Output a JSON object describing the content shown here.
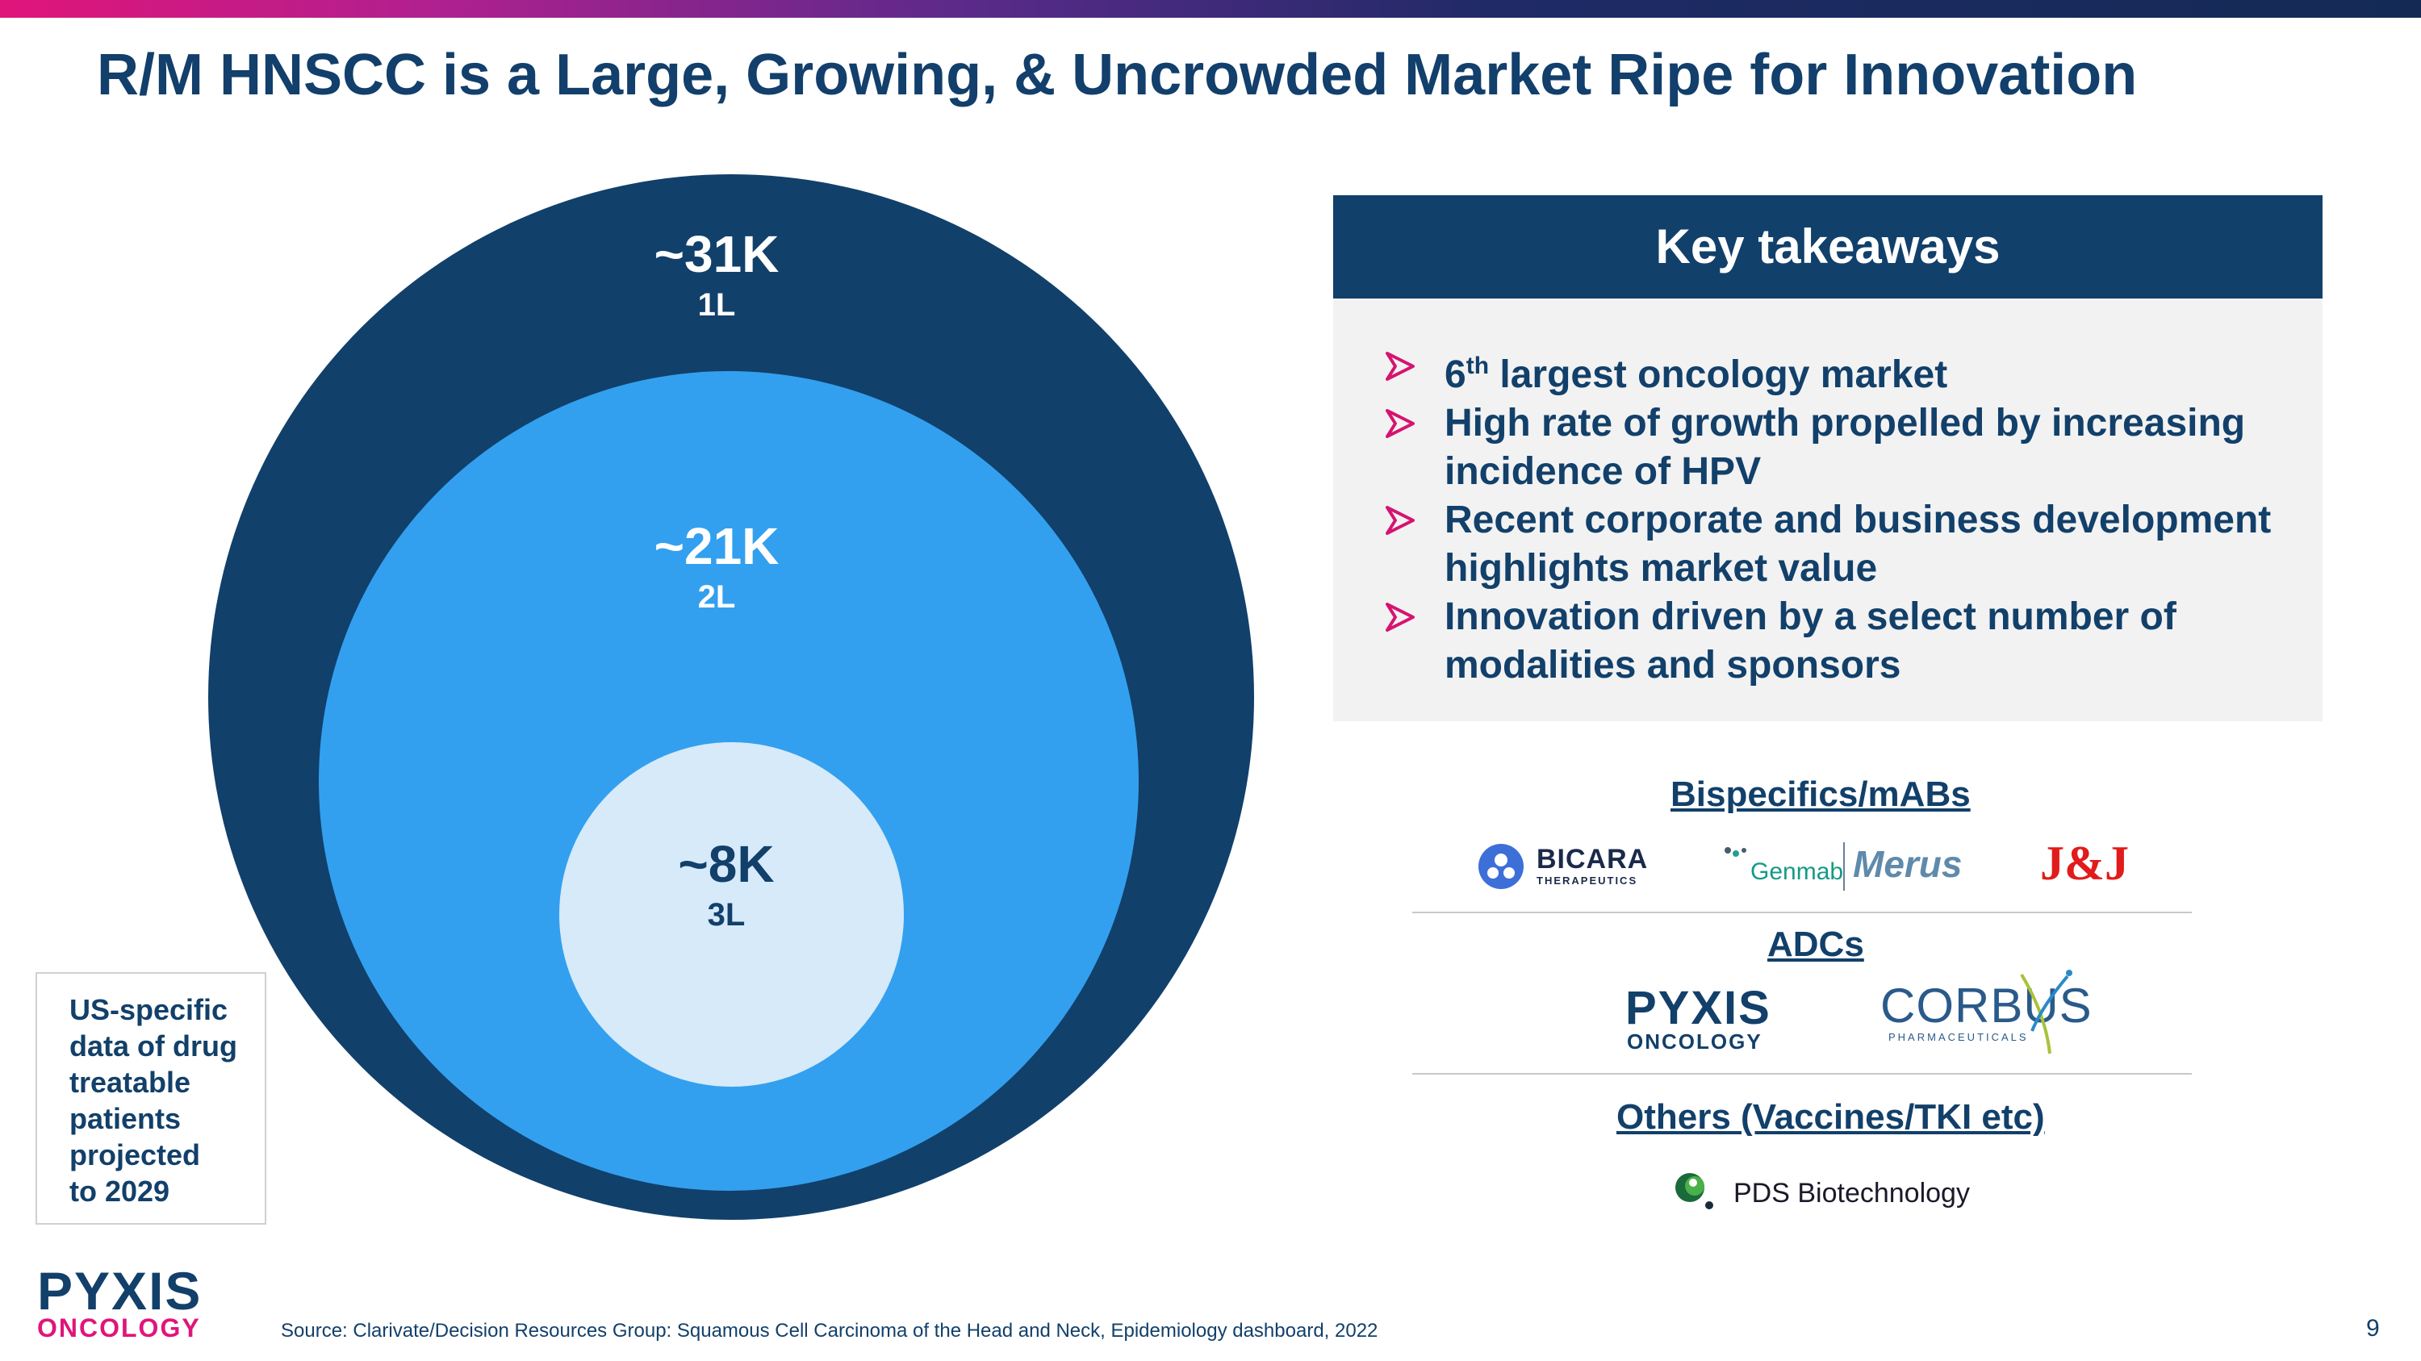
{
  "slide": {
    "title": "R/M HNSCC is a Large, Growing, & Uncrowded Market Ripe for Innovation",
    "page_number": "9",
    "source": "Source: Clarivate/Decision Resources Group: Squamous Cell Carcinoma of the Head and Neck, Epidemiology dashboard, 2022"
  },
  "circles": [
    {
      "value": "~31K",
      "line": "1L",
      "color": "#11406b"
    },
    {
      "value": "~21K",
      "line": "2L",
      "color": "#33a0ef"
    },
    {
      "value": "~8K",
      "line": "3L",
      "color": "#d6eafa"
    }
  ],
  "note": {
    "lines": [
      "US-specific",
      "data of drug",
      "treatable",
      "patients",
      "projected",
      "to 2029"
    ]
  },
  "takeaways": {
    "heading": "Key takeaways",
    "bullet1_pre": "6",
    "bullet1_sup": "th",
    "bullet1_post": " largest oncology market",
    "bullet2": "High rate of growth propelled by increasing incidence of HPV",
    "bullet3": "Recent corporate and business development highlights market value",
    "bullet4": "Innovation driven by a select number of modalities and sponsors",
    "arrow_color": "#d6136f"
  },
  "modalities": {
    "bispecifics": {
      "heading": "Bispecifics/mABs",
      "logos": {
        "bicara": "BICARA",
        "bicara_sub": "THERAPEUTICS",
        "genmab": "Genmab",
        "merus": "Merus",
        "jnj": "J&J"
      }
    },
    "adcs": {
      "heading": "ADCs",
      "logos": {
        "pyxis": "PYXIS",
        "pyxis_sub": "ONCOLOGY",
        "corbus": "CORBUS",
        "corbus_sub": "PHARMACEUTICALS"
      }
    },
    "others": {
      "heading": "Others (Vaccines/TKI etc)",
      "logos": {
        "pds": "PDS Biotechnology"
      }
    }
  },
  "brand": {
    "logo_main": "PYXIS",
    "logo_sub": "ONCOLOGY",
    "navy": "#12406a",
    "pink": "#e0157a"
  }
}
